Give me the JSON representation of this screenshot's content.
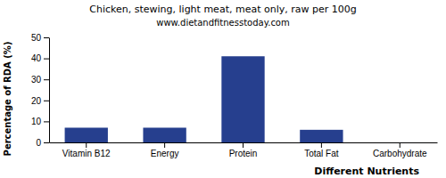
{
  "chart_data": {
    "type": "bar",
    "title": "Chicken, stewing, light meat, meat only, raw per 100g",
    "subtitle": "www.dietandfitnesstoday.com",
    "x_label": "Different Nutrients",
    "y_label": "Percentage of RDA (%)",
    "categories": [
      "Vitamin B12",
      "Energy",
      "Protein",
      "Total Fat",
      "Carbohydrate"
    ],
    "values": [
      7,
      7,
      41,
      6,
      0
    ],
    "color": "#263f8e",
    "ylim": [
      0,
      50
    ],
    "yticks": [
      0,
      10,
      20,
      30,
      40,
      50
    ],
    "grid": false
  }
}
